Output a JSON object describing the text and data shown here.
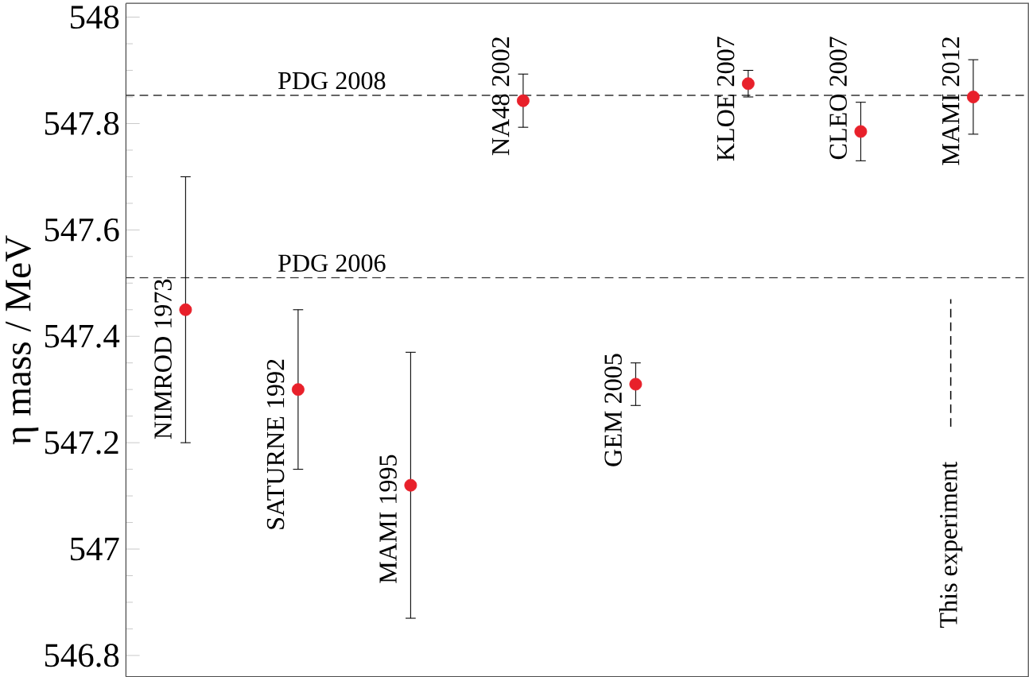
{
  "chart_data": {
    "type": "scatter",
    "ylabel": "η mass / MeV",
    "categories": [
      "NIMROD 1973",
      "SATURNE 1992",
      "MAMI 1995",
      "NA48 2002",
      "GEM 2005",
      "KLOE 2007",
      "CLEO 2007",
      "MAMI 2012"
    ],
    "series": [
      {
        "color": "#e8202a",
        "values": [
          547.45,
          547.3,
          547.12,
          547.843,
          547.31,
          547.875,
          547.785,
          547.85
        ],
        "errors": [
          0.25,
          0.15,
          0.25,
          0.05,
          0.04,
          0.025,
          0.055,
          0.07
        ]
      }
    ],
    "marker": "circle",
    "ylim": [
      546.76,
      548.026
    ],
    "yticks": [
      546.8,
      547,
      547.2,
      547.4,
      547.6,
      547.8,
      548
    ],
    "ref_lines": [
      {
        "axis": "y",
        "value": 547.853,
        "label": "PDG 2008",
        "line_style": "dashed"
      },
      {
        "axis": "y",
        "value": 547.51,
        "label": "PDG 2006",
        "line_style": "dashed"
      }
    ],
    "annotations": [
      "This experiment"
    ],
    "tick_labels": "y"
  }
}
